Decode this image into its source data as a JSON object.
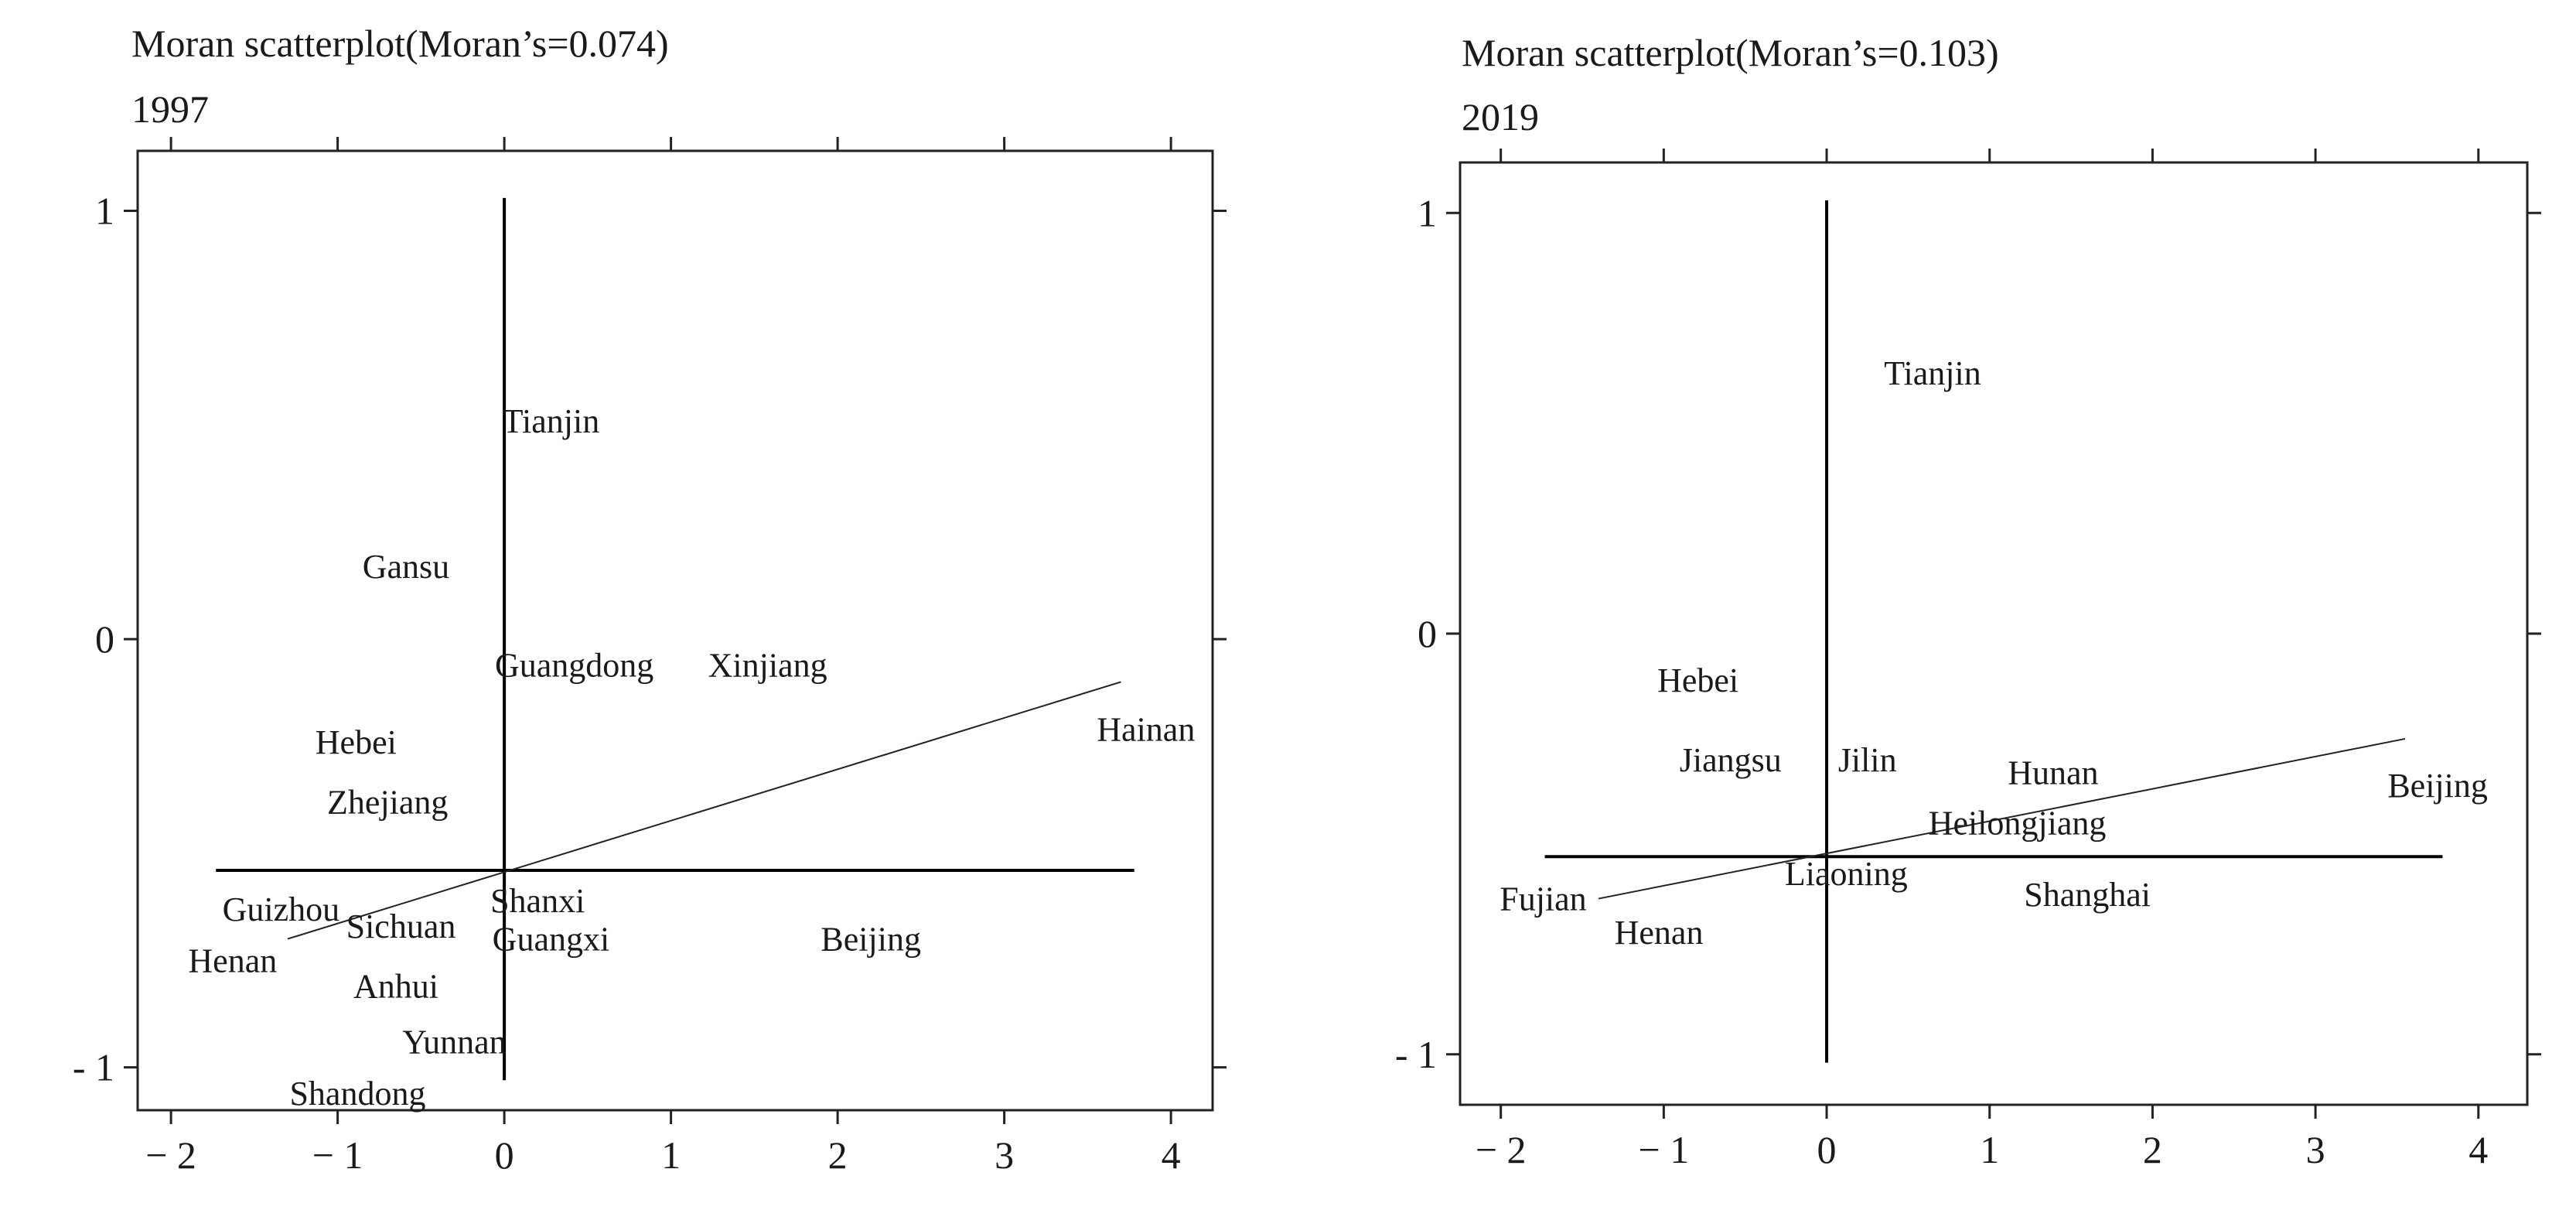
{
  "chart_data": [
    {
      "type": "scatter",
      "title": "Moran scatterplot(Moran’s=0.074)",
      "subtitle": "1997",
      "xlabel": "",
      "ylabel": "",
      "xlim": [
        -2.2,
        4.25
      ],
      "ylim": [
        -1.1,
        1.14
      ],
      "x_ticks": [
        -2,
        -1,
        0,
        1,
        2,
        3,
        4
      ],
      "y_ticks": [
        -1,
        0,
        1
      ],
      "x_tick_labels": [
        "− 2",
        "− 1",
        "0",
        "1",
        "2",
        "3",
        "4"
      ],
      "y_tick_labels": [
        "- 1",
        "0",
        "1"
      ],
      "mean_lines": {
        "vertical": {
          "x": 0,
          "y_from": -1.03,
          "y_to": 1.03
        },
        "horizontal": {
          "y": -0.54,
          "x_from": -1.73,
          "x_to": 3.78
        }
      },
      "fit_line": {
        "from": [
          -1.3,
          -0.7
        ],
        "to": [
          3.7,
          -0.1
        ]
      },
      "points": [
        {
          "label": "Tianjin",
          "x": 0.28,
          "y": 0.51
        },
        {
          "label": "Gansu",
          "x": -0.59,
          "y": 0.17
        },
        {
          "label": "Guangdong",
          "x": 0.42,
          "y": -0.06
        },
        {
          "label": "Xinjiang",
          "x": 1.58,
          "y": -0.06
        },
        {
          "label": "Hainan",
          "x": 3.85,
          "y": -0.21
        },
        {
          "label": "Hebei",
          "x": -0.89,
          "y": -0.24
        },
        {
          "label": "Zhejiang",
          "x": -0.7,
          "y": -0.38
        },
        {
          "label": "Guizhou",
          "x": -1.34,
          "y": -0.63
        },
        {
          "label": "Shanxi",
          "x": 0.2,
          "y": -0.61
        },
        {
          "label": "Sichuan",
          "x": -0.62,
          "y": -0.67
        },
        {
          "label": "Guangxi",
          "x": 0.28,
          "y": -0.7
        },
        {
          "label": "Beijing",
          "x": 2.2,
          "y": -0.7
        },
        {
          "label": "Henan",
          "x": -1.63,
          "y": -0.75
        },
        {
          "label": "Anhui",
          "x": -0.65,
          "y": -0.81
        },
        {
          "label": "Yunnan",
          "x": -0.3,
          "y": -0.94
        },
        {
          "label": "Shandong",
          "x": -0.88,
          "y": -1.06
        }
      ]
    },
    {
      "type": "scatter",
      "title": "Moran scatterplot(Moran’s=0.103)",
      "subtitle": "2019",
      "xlabel": "",
      "ylabel": "",
      "xlim": [
        -2.25,
        4.3
      ],
      "ylim": [
        -1.12,
        1.12
      ],
      "x_ticks": [
        -2,
        -1,
        0,
        1,
        2,
        3,
        4
      ],
      "y_ticks": [
        -1,
        0,
        1
      ],
      "x_tick_labels": [
        "− 2",
        "− 1",
        "0",
        "1",
        "2",
        "3",
        "4"
      ],
      "y_tick_labels": [
        "- 1",
        "0",
        "1"
      ],
      "mean_lines": {
        "vertical": {
          "x": 0,
          "y_from": -1.02,
          "y_to": 1.03
        },
        "horizontal": {
          "y": -0.53,
          "x_from": -1.73,
          "x_to": 3.78
        }
      },
      "fit_line": {
        "from": [
          -1.4,
          -0.63
        ],
        "to": [
          3.55,
          -0.25
        ]
      },
      "points": [
        {
          "label": "Tianjin",
          "x": 0.65,
          "y": 0.62
        },
        {
          "label": "Hebei",
          "x": -0.79,
          "y": -0.11
        },
        {
          "label": "Jiangsu",
          "x": -0.59,
          "y": -0.3
        },
        {
          "label": "Jilin",
          "x": 0.25,
          "y": -0.3
        },
        {
          "label": "Hunan",
          "x": 1.39,
          "y": -0.33
        },
        {
          "label": "Beijing",
          "x": 3.75,
          "y": -0.36
        },
        {
          "label": "Heilongjiang",
          "x": 1.17,
          "y": -0.45
        },
        {
          "label": "Liaoning",
          "x": 0.12,
          "y": -0.57
        },
        {
          "label": "Fujian",
          "x": -1.74,
          "y": -0.63
        },
        {
          "label": "Shanghai",
          "x": 1.6,
          "y": -0.62
        },
        {
          "label": "Henan",
          "x": -1.03,
          "y": -0.71
        }
      ]
    }
  ]
}
